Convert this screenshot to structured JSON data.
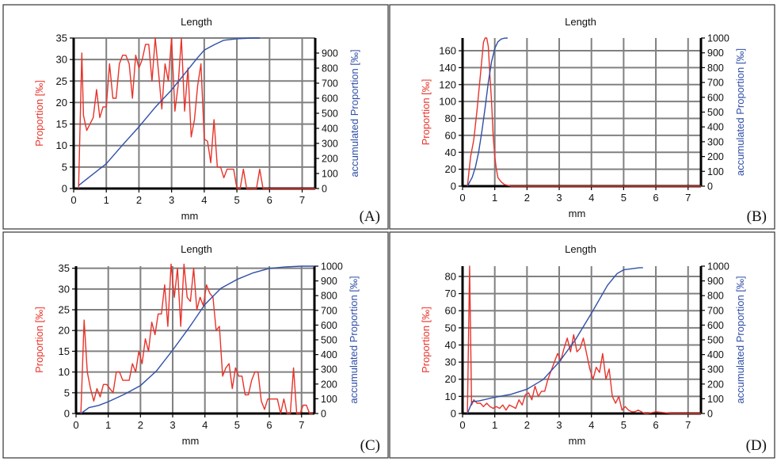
{
  "chart_data": [
    {
      "panel_label": "(A)",
      "type": "line",
      "title": "Length",
      "xlabel": "mm",
      "ylabel_left": "Proportion [‰]",
      "ylabel_right": "accumulated Proportion [‰]",
      "xlim": [
        0,
        7.4
      ],
      "ylim_left": [
        0,
        35
      ],
      "ylim_right": [
        0,
        1000
      ],
      "x_ticks": [
        0,
        1,
        2,
        3,
        4,
        5,
        6,
        7
      ],
      "y_ticks_left": [
        0,
        5,
        10,
        15,
        20,
        25,
        30,
        35
      ],
      "y_ticks_right": [
        0,
        100,
        200,
        300,
        400,
        500,
        600,
        700,
        800,
        900
      ],
      "grid": true,
      "series": [
        {
          "name": "Proportion [‰]",
          "axis": "left",
          "color": "#e8332a",
          "x": [
            0.15,
            0.25,
            0.3,
            0.4,
            0.5,
            0.6,
            0.7,
            0.8,
            0.9,
            1.0,
            1.1,
            1.2,
            1.3,
            1.4,
            1.5,
            1.6,
            1.7,
            1.8,
            1.9,
            2.0,
            2.1,
            2.2,
            2.3,
            2.4,
            2.5,
            2.6,
            2.7,
            2.8,
            2.9,
            3.0,
            3.1,
            3.2,
            3.3,
            3.4,
            3.5,
            3.6,
            3.7,
            3.8,
            3.9,
            4.0,
            4.1,
            4.2,
            4.3,
            4.4,
            4.5,
            4.6,
            4.7,
            4.8,
            4.9,
            5.0,
            5.1,
            5.2,
            5.3,
            5.4,
            5.5,
            5.6,
            5.7,
            5.8,
            5.9,
            6.0,
            7.4
          ],
          "y": [
            0,
            31.5,
            17,
            13.5,
            15,
            16.5,
            23,
            16.5,
            19,
            19,
            29,
            21,
            21,
            29,
            31,
            31,
            29,
            21,
            31,
            28,
            30,
            33.5,
            33.5,
            25,
            35,
            27,
            18.5,
            29,
            25,
            35,
            18,
            24,
            35,
            18,
            28,
            12,
            16,
            24,
            29,
            11.5,
            11,
            6,
            16,
            5,
            5,
            2.5,
            4.5,
            4.5,
            4.5,
            0,
            0,
            4.5,
            0,
            0,
            0,
            0,
            4.5,
            0,
            0,
            0,
            0
          ]
        },
        {
          "name": "accumulated Proportion [‰]",
          "axis": "right",
          "color": "#2f4fa8",
          "x": [
            0.15,
            0.5,
            1.0,
            1.5,
            2.0,
            2.5,
            3.0,
            3.5,
            3.8,
            4.0,
            4.3,
            4.6,
            5.0,
            5.5,
            5.7
          ],
          "y": [
            20,
            80,
            165,
            290,
            410,
            540,
            655,
            790,
            870,
            920,
            955,
            985,
            995,
            1000,
            1000
          ]
        }
      ]
    },
    {
      "panel_label": "(B)",
      "type": "line",
      "title": "Length",
      "xlabel": "mm",
      "ylabel_left": "Proportion [‰]",
      "ylabel_right": "accumulated Proportion [‰]",
      "xlim": [
        0,
        7.4
      ],
      "ylim_left": [
        0,
        175
      ],
      "ylim_right": [
        0,
        1000
      ],
      "x_ticks": [
        0,
        1,
        2,
        3,
        4,
        5,
        6,
        7
      ],
      "y_ticks_left": [
        0,
        20,
        40,
        60,
        80,
        100,
        120,
        140,
        160
      ],
      "y_ticks_right": [
        0,
        100,
        200,
        300,
        400,
        500,
        600,
        700,
        800,
        900,
        1000
      ],
      "grid": true,
      "series": [
        {
          "name": "Proportion [‰]",
          "axis": "left",
          "color": "#e8332a",
          "x": [
            0.15,
            0.25,
            0.35,
            0.45,
            0.55,
            0.65,
            0.7,
            0.75,
            0.8,
            0.85,
            0.9,
            0.95,
            1.0,
            1.05,
            1.1,
            1.2,
            1.3,
            1.4,
            1.5,
            2.0,
            3.0,
            4.0,
            5.0,
            6.0,
            7.4
          ],
          "y": [
            0,
            35,
            55,
            90,
            130,
            170,
            175,
            175,
            165,
            130,
            100,
            60,
            35,
            20,
            10,
            5,
            2,
            1,
            0,
            0,
            0,
            0,
            0,
            0,
            0
          ]
        },
        {
          "name": "accumulated Proportion [‰]",
          "axis": "right",
          "color": "#2f4fa8",
          "x": [
            0.15,
            0.3,
            0.4,
            0.5,
            0.6,
            0.7,
            0.8,
            0.9,
            1.0,
            1.1,
            1.2,
            1.3,
            1.4
          ],
          "y": [
            0,
            60,
            130,
            230,
            370,
            530,
            700,
            840,
            930,
            975,
            993,
            999,
            1000
          ]
        }
      ]
    },
    {
      "panel_label": "(C)",
      "type": "line",
      "title": "Length",
      "xlabel": "mm",
      "ylabel_left": "Proportion [‰]",
      "ylabel_right": "accumulated Proportion [‰]",
      "xlim": [
        0,
        7.4
      ],
      "ylim_left": [
        0,
        35.5
      ],
      "ylim_right": [
        0,
        1000
      ],
      "x_ticks": [
        0,
        1,
        2,
        3,
        4,
        5,
        6,
        7
      ],
      "y_ticks_left": [
        0,
        5,
        10,
        15,
        20,
        25,
        30,
        35
      ],
      "y_ticks_right": [
        0,
        100,
        200,
        300,
        400,
        500,
        600,
        700,
        800,
        900,
        1000
      ],
      "grid": true,
      "series": [
        {
          "name": "Proportion [‰]",
          "axis": "left",
          "color": "#e8332a",
          "x": [
            0.15,
            0.25,
            0.35,
            0.45,
            0.55,
            0.65,
            0.75,
            0.85,
            0.95,
            1.05,
            1.15,
            1.25,
            1.35,
            1.45,
            1.55,
            1.65,
            1.75,
            1.85,
            1.95,
            2.05,
            2.15,
            2.25,
            2.35,
            2.45,
            2.55,
            2.65,
            2.75,
            2.85,
            2.95,
            3.05,
            3.15,
            3.25,
            3.35,
            3.45,
            3.55,
            3.65,
            3.75,
            3.85,
            3.95,
            4.05,
            4.15,
            4.25,
            4.35,
            4.45,
            4.55,
            4.65,
            4.75,
            4.85,
            4.95,
            5.05,
            5.15,
            5.25,
            5.35,
            5.45,
            5.55,
            5.65,
            5.75,
            5.85,
            5.95,
            6.05,
            6.15,
            6.25,
            6.35,
            6.45,
            6.55,
            6.65,
            6.75,
            6.85,
            6.95,
            7.05,
            7.15,
            7.25,
            7.35
          ],
          "y": [
            0,
            22.5,
            10,
            6,
            3,
            6,
            4,
            7,
            7,
            6,
            5,
            10,
            10,
            8,
            8,
            8,
            12,
            10,
            15,
            12,
            18,
            15,
            22,
            19,
            24,
            24,
            31,
            21,
            36,
            28,
            35,
            21,
            36,
            28,
            27,
            35,
            25,
            28,
            26,
            31,
            29,
            28,
            20,
            21,
            9,
            11,
            12,
            6,
            11,
            9,
            9,
            4.5,
            4.5,
            8,
            10,
            10,
            3,
            1,
            3.5,
            3.5,
            3.5,
            3.5,
            0,
            3.5,
            0,
            0,
            11,
            0,
            0,
            2,
            2,
            0,
            0
          ]
        },
        {
          "name": "accumulated Proportion [‰]",
          "axis": "right",
          "color": "#2f4fa8",
          "x": [
            0.15,
            0.4,
            0.7,
            1.0,
            1.5,
            2.0,
            2.5,
            3.0,
            3.5,
            4.0,
            4.5,
            5.0,
            5.5,
            6.0,
            6.5,
            7.0,
            7.4
          ],
          "y": [
            0,
            40,
            55,
            80,
            130,
            190,
            290,
            430,
            580,
            740,
            850,
            910,
            955,
            985,
            995,
            1000,
            1000
          ]
        }
      ]
    },
    {
      "panel_label": "(D)",
      "type": "line",
      "title": "Length",
      "xlabel": "mm",
      "ylabel_left": "Proportion [‰]",
      "ylabel_right": "accumulated Proportion [‰]",
      "xlim": [
        0,
        7.4
      ],
      "ylim_left": [
        0,
        86
      ],
      "ylim_right": [
        0,
        1000
      ],
      "x_ticks": [
        0,
        1,
        2,
        3,
        4,
        5,
        6,
        7
      ],
      "y_ticks_left": [
        0,
        10,
        20,
        30,
        40,
        50,
        60,
        70,
        80
      ],
      "y_ticks_right": [
        0,
        100,
        200,
        300,
        400,
        500,
        600,
        700,
        800,
        900,
        1000
      ],
      "grid": true,
      "series": [
        {
          "name": "Proportion [‰]",
          "axis": "left",
          "color": "#e8332a",
          "x": [
            0.15,
            0.22,
            0.28,
            0.35,
            0.45,
            0.55,
            0.65,
            0.75,
            0.85,
            0.95,
            1.05,
            1.15,
            1.25,
            1.35,
            1.45,
            1.55,
            1.65,
            1.75,
            1.85,
            1.95,
            2.05,
            2.15,
            2.25,
            2.35,
            2.45,
            2.55,
            2.65,
            2.75,
            2.85,
            2.95,
            3.05,
            3.15,
            3.25,
            3.35,
            3.45,
            3.55,
            3.65,
            3.75,
            3.85,
            3.95,
            4.05,
            4.15,
            4.25,
            4.35,
            4.45,
            4.55,
            4.65,
            4.75,
            4.85,
            4.95,
            5.05,
            5.15,
            5.25,
            5.35,
            5.45,
            5.55,
            5.65,
            5.75,
            6.0,
            6.5,
            7.4
          ],
          "y": [
            0,
            86,
            5,
            8,
            6,
            6,
            4,
            6,
            4,
            3,
            4,
            3,
            5,
            2,
            5,
            4,
            3,
            8,
            5,
            11,
            12,
            8,
            16,
            10,
            13,
            13,
            20,
            25,
            30,
            35,
            31,
            38,
            44,
            36,
            46,
            36,
            38,
            44,
            35,
            26,
            20,
            27,
            24,
            35,
            20,
            26,
            10,
            6,
            10,
            2,
            4,
            2,
            1,
            1,
            2,
            1,
            0,
            0,
            1,
            0,
            0
          ]
        },
        {
          "name": "accumulated Proportion [‰]",
          "axis": "right",
          "color": "#2f4fa8",
          "x": [
            0.15,
            0.3,
            0.5,
            1.0,
            1.5,
            2.0,
            2.5,
            3.0,
            3.5,
            4.0,
            4.5,
            4.8,
            5.0,
            5.5,
            5.6
          ],
          "y": [
            0,
            80,
            85,
            110,
            130,
            165,
            230,
            350,
            500,
            680,
            870,
            950,
            975,
            990,
            990
          ]
        }
      ]
    }
  ]
}
